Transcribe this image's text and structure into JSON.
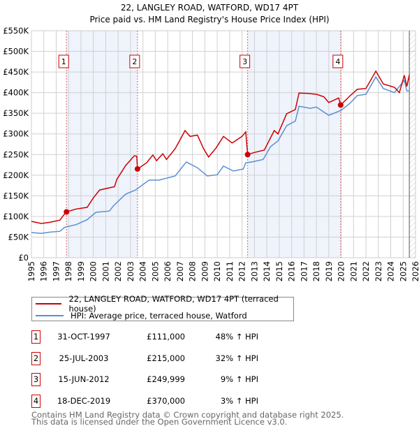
{
  "chart_data": {
    "type": "line",
    "title": "22, LANGLEY ROAD, WATFORD, WD17 4PT",
    "subtitle": "Price paid vs. HM Land Registry's House Price Index (HPI)",
    "xlim": [
      1995,
      2026
    ],
    "ylim": [
      0,
      550000
    ],
    "y_ticks": [
      0,
      50000,
      100000,
      150000,
      200000,
      250000,
      300000,
      350000,
      400000,
      450000,
      500000,
      550000
    ],
    "y_tick_labels": [
      "£0",
      "£50K",
      "£100K",
      "£150K",
      "£200K",
      "£250K",
      "£300K",
      "£350K",
      "£400K",
      "£450K",
      "£500K",
      "£550K"
    ],
    "x_tick_labels": [
      "1995",
      "1996",
      "1997",
      "1998",
      "1999",
      "2000",
      "2001",
      "2002",
      "2003",
      "2004",
      "2005",
      "2006",
      "2007",
      "2008",
      "2009",
      "2010",
      "2011",
      "2012",
      "2013",
      "2014",
      "2015",
      "2016",
      "2017",
      "2018",
      "2019",
      "2020",
      "2021",
      "2022",
      "2023",
      "2024",
      "2025",
      "2026"
    ],
    "grid": true,
    "data_end_year": 2025.5,
    "series": [
      {
        "name": "22, LANGLEY ROAD, WATFORD, WD17 4PT (terraced house)",
        "color": "#cc0000",
        "x": [
          1995.0,
          1995.8,
          1996.5,
          1997.3,
          1997.6,
          1997.83,
          1998.6,
          1999.5,
          2000.0,
          2000.5,
          2001.4,
          2001.7,
          2001.9,
          2002.6,
          2003.3,
          2003.5,
          2003.56,
          2004.3,
          2004.8,
          2005.1,
          2005.6,
          2005.9,
          2006.6,
          2007.4,
          2007.8,
          2008.4,
          2008.9,
          2009.3,
          2009.9,
          2010.5,
          2011.2,
          2012.0,
          2012.3,
          2012.45,
          2013.0,
          2013.8,
          2014.6,
          2014.9,
          2015.6,
          2016.3,
          2016.6,
          2017.3,
          2018.0,
          2018.6,
          2019.0,
          2019.8,
          2019.96,
          2020.7,
          2021.3,
          2022.0,
          2022.8,
          2023.4,
          2024.3,
          2024.7,
          2025.1,
          2025.3,
          2025.5
        ],
        "y": [
          88000,
          83000,
          86000,
          91000,
          103000,
          111000,
          118000,
          122000,
          145000,
          164000,
          170000,
          172000,
          190000,
          223000,
          247000,
          246000,
          215000,
          230000,
          249000,
          235000,
          252000,
          238000,
          264000,
          308000,
          294000,
          297000,
          264000,
          244000,
          266000,
          294000,
          278000,
          294000,
          305000,
          249999,
          255000,
          261000,
          308000,
          300000,
          349000,
          359000,
          399000,
          398000,
          396000,
          390000,
          376000,
          387000,
          370000,
          392000,
          408000,
          410000,
          452000,
          421000,
          413000,
          400000,
          442000,
          415000,
          443000
        ]
      },
      {
        "name": "HPI: Average price, terraced house, Watford",
        "color": "#5b8fd0",
        "x": [
          1995.0,
          1995.8,
          1996.5,
          1997.3,
          1997.7,
          1998.6,
          1999.5,
          2000.2,
          2001.3,
          2001.6,
          2002.6,
          2003.4,
          2004.5,
          2005.3,
          2006.6,
          2007.5,
          2008.4,
          2009.2,
          2010.0,
          2010.5,
          2011.3,
          2012.1,
          2012.3,
          2012.8,
          2013.7,
          2014.3,
          2014.9,
          2015.6,
          2016.3,
          2016.6,
          2017.5,
          2018.0,
          2019.0,
          2020.0,
          2020.7,
          2021.3,
          2022.0,
          2022.8,
          2023.4,
          2024.3,
          2025.1,
          2025.3,
          2025.5
        ],
        "y": [
          61000,
          59000,
          62000,
          64000,
          74000,
          80000,
          92000,
          110000,
          113000,
          125000,
          154000,
          164000,
          188000,
          188000,
          198000,
          232000,
          218000,
          198000,
          201000,
          222000,
          210000,
          215000,
          230000,
          232000,
          238000,
          269000,
          283000,
          320000,
          331000,
          367000,
          362000,
          365000,
          345000,
          357000,
          374000,
          393000,
          396000,
          438000,
          410000,
          400000,
          430000,
          404000,
          404000
        ]
      }
    ],
    "sales": [
      {
        "label": "1",
        "x": 1997.83,
        "price": 111000
      },
      {
        "label": "2",
        "x": 2003.56,
        "price": 215000
      },
      {
        "label": "3",
        "x": 2012.45,
        "price": 249999
      },
      {
        "label": "4",
        "x": 2019.96,
        "price": 370000
      }
    ],
    "shaded_ranges": [
      [
        1997.83,
        2003.56
      ],
      [
        2012.45,
        2019.96
      ]
    ]
  },
  "legend": {
    "property": "22, LANGLEY ROAD, WATFORD, WD17 4PT (terraced house)",
    "hpi": "HPI: Average price, terraced house, Watford"
  },
  "transactions": [
    {
      "num": "1",
      "date": "31-OCT-1997",
      "price": "£111,000",
      "hpi": "48% ↑ HPI"
    },
    {
      "num": "2",
      "date": "25-JUL-2003",
      "price": "£215,000",
      "hpi": "32% ↑ HPI"
    },
    {
      "num": "3",
      "date": "15-JUN-2012",
      "price": "£249,999",
      "hpi": "9% ↑ HPI"
    },
    {
      "num": "4",
      "date": "18-DEC-2019",
      "price": "£370,000",
      "hpi": "3% ↑ HPI"
    }
  ],
  "footer": {
    "line1": "Contains HM Land Registry data © Crown copyright and database right 2025.",
    "line2": "This data is licensed under the Open Government Licence v3.0."
  }
}
